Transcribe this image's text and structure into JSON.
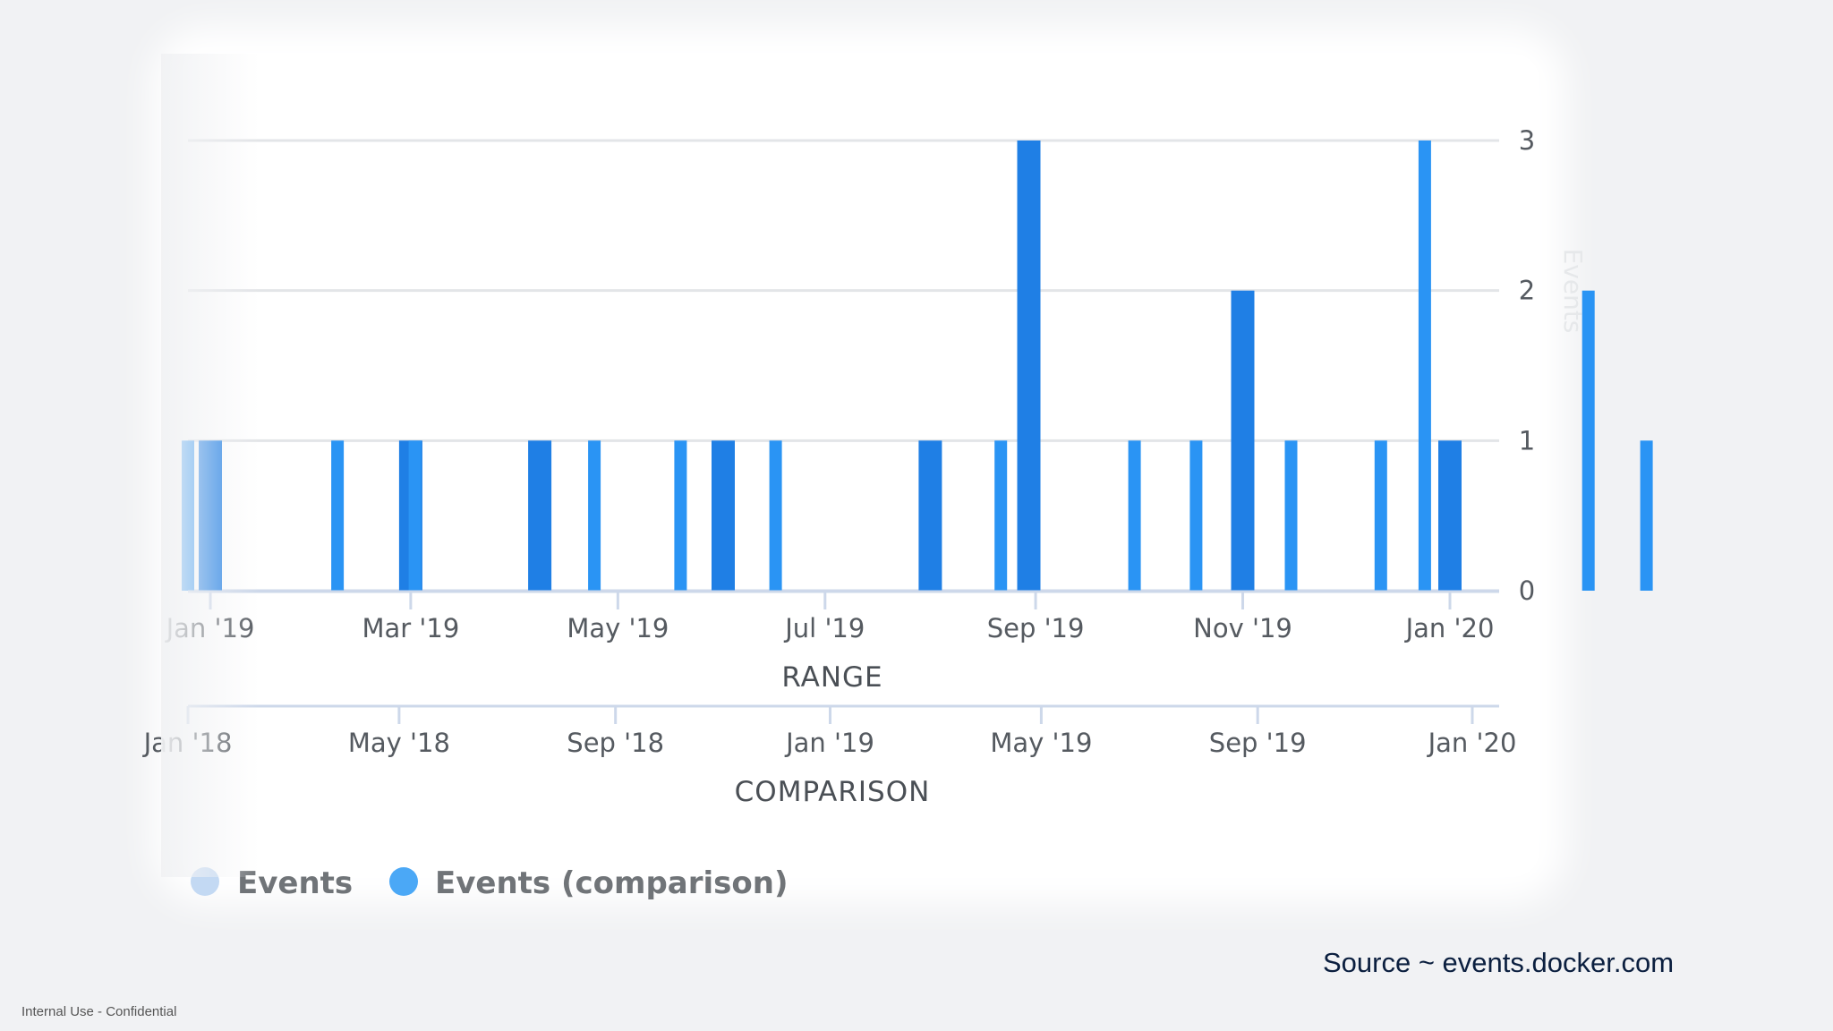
{
  "chart_data": {
    "type": "bar",
    "ylabel": "Events",
    "ylim": [
      0,
      3
    ],
    "y_ticks": [
      "0",
      "1",
      "2",
      "3"
    ],
    "grid": true,
    "legend_position": "bottom-left",
    "series": [
      {
        "name": "Events",
        "color": "#1f7fe5",
        "x": [
          "2019-01-01",
          "2019-03-01",
          "2019-04-08",
          "2019-06-01",
          "2019-08-01",
          "2019-08-30",
          "2019-11-01",
          "2020-01-01"
        ],
        "values": [
          1,
          1,
          1,
          1,
          1,
          3,
          2,
          1
        ]
      },
      {
        "name": "Events (comparison)",
        "color": "#2a94f4",
        "x": [
          "2018-01-01",
          "2018-03-27",
          "2018-05-10",
          "2018-08-20",
          "2018-10-08",
          "2018-12-01",
          "2019-04-08",
          "2019-06-23",
          "2019-07-28",
          "2019-09-20",
          "2019-11-10",
          "2019-12-05",
          "2020-03-07",
          "2020-04-09"
        ],
        "values": [
          1,
          1,
          1,
          1,
          1,
          1,
          1,
          1,
          1,
          1,
          1,
          3,
          2,
          1
        ]
      }
    ],
    "range_axis": {
      "title": "RANGE",
      "ticks": [
        {
          "label": "Jan '19",
          "date": "2019-01-01"
        },
        {
          "label": "Mar '19",
          "date": "2019-03-01"
        },
        {
          "label": "May '19",
          "date": "2019-05-01"
        },
        {
          "label": "Jul '19",
          "date": "2019-07-01"
        },
        {
          "label": "Sep '19",
          "date": "2019-09-01"
        },
        {
          "label": "Nov '19",
          "date": "2019-11-01"
        },
        {
          "label": "Jan '20",
          "date": "2020-01-01"
        }
      ]
    },
    "comparison_axis": {
      "title": "COMPARISON",
      "ticks": [
        {
          "label": "Jan '18",
          "date": "2018-01-01"
        },
        {
          "label": "May '18",
          "date": "2018-05-01"
        },
        {
          "label": "Sep '18",
          "date": "2018-09-01"
        },
        {
          "label": "Jan '19",
          "date": "2019-01-01"
        },
        {
          "label": "May '19",
          "date": "2019-05-01"
        },
        {
          "label": "Sep '19",
          "date": "2019-09-01"
        },
        {
          "label": "Jan '20",
          "date": "2020-01-01"
        }
      ]
    }
  },
  "source": "Source ~ events.docker.com",
  "footer": "Internal Use - Confidential"
}
